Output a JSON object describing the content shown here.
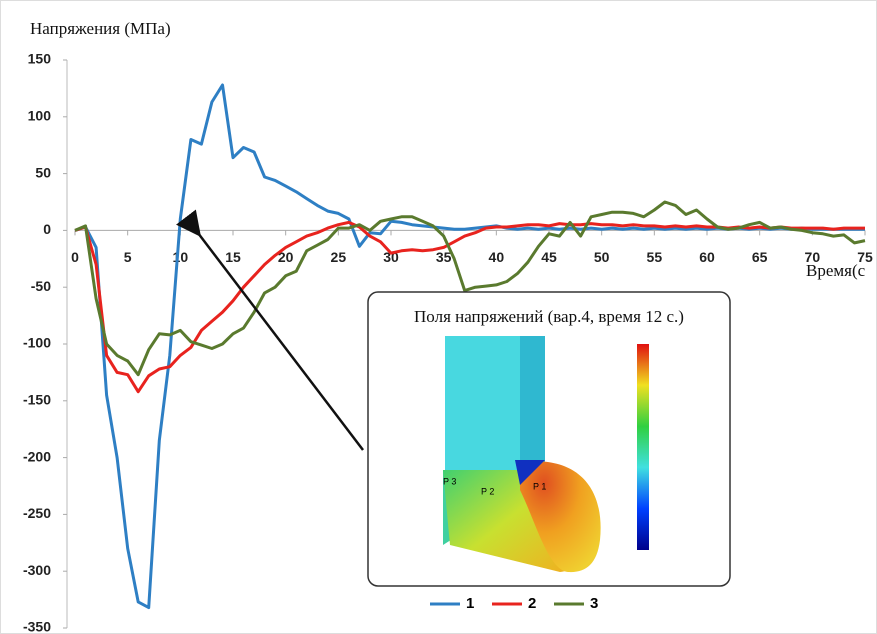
{
  "chart_data": {
    "type": "line",
    "y_label": "Напряжения (МПа)",
    "x_label": "Время(с",
    "x": [
      0,
      1,
      2,
      3,
      4,
      5,
      6,
      7,
      8,
      9,
      10,
      11,
      12,
      13,
      14,
      15,
      16,
      17,
      18,
      19,
      20,
      21,
      22,
      23,
      24,
      25,
      26,
      27,
      28,
      29,
      30,
      31,
      32,
      33,
      34,
      35,
      36,
      37,
      38,
      39,
      40,
      41,
      42,
      43,
      44,
      45,
      46,
      47,
      48,
      49,
      50,
      51,
      52,
      53,
      54,
      55,
      56,
      57,
      58,
      59,
      60,
      61,
      62,
      63,
      64,
      65,
      66,
      67,
      68,
      69,
      70,
      71,
      72,
      73,
      74,
      75
    ],
    "series": [
      {
        "name": "1",
        "color": "#2e7fc4",
        "values": [
          0,
          3,
          -15,
          -145,
          -200,
          -280,
          -327,
          -332,
          -185,
          -110,
          10,
          80,
          76,
          113,
          128,
          64,
          73,
          69,
          47,
          44,
          39,
          34,
          28,
          22,
          17,
          15,
          10,
          -14,
          -2,
          -3,
          8,
          7,
          5,
          4,
          3,
          2,
          1,
          1,
          2,
          3,
          4,
          2,
          1,
          2,
          1,
          2,
          1,
          2,
          1,
          2,
          1,
          2,
          1,
          2,
          1,
          2,
          1,
          2,
          1,
          2,
          1,
          2,
          1,
          2,
          1,
          2,
          1,
          2,
          1,
          2,
          1,
          1,
          1,
          1,
          1,
          1
        ]
      },
      {
        "name": "2",
        "color": "#e8231e",
        "values": [
          0,
          3,
          -30,
          -110,
          -125,
          -127,
          -142,
          -128,
          -122,
          -120,
          -110,
          -103,
          -88,
          -80,
          -72,
          -62,
          -50,
          -40,
          -30,
          -22,
          -15,
          -10,
          -5,
          -2,
          2,
          5,
          7,
          3,
          -5,
          -10,
          -20,
          -18,
          -17,
          -18,
          -17,
          -15,
          -10,
          -5,
          -2,
          2,
          3,
          3,
          4,
          5,
          5,
          4,
          6,
          5,
          5,
          6,
          5,
          5,
          4,
          5,
          4,
          4,
          3,
          4,
          3,
          4,
          3,
          3,
          2,
          3,
          2,
          3,
          2,
          3,
          2,
          2,
          2,
          2,
          1,
          2,
          2,
          2
        ]
      },
      {
        "name": "3",
        "color": "#5a7a2e",
        "values": [
          0,
          4,
          -60,
          -100,
          -110,
          -115,
          -127,
          -105,
          -91,
          -92,
          -88,
          -98,
          -101,
          -104,
          -100,
          -91,
          -86,
          -72,
          -55,
          -50,
          -40,
          -36,
          -18,
          -13,
          -8,
          2,
          2,
          5,
          0,
          8,
          10,
          12,
          12,
          8,
          4,
          -5,
          -25,
          -53,
          -50,
          -49,
          -48,
          -45,
          -38,
          -28,
          -14,
          -3,
          -5,
          7,
          -5,
          12,
          14,
          16,
          16,
          15,
          12,
          18,
          25,
          22,
          14,
          18,
          10,
          3,
          1,
          2,
          5,
          7,
          2,
          3,
          1,
          0,
          -2,
          -3,
          -5,
          -4,
          -11,
          -9
        ]
      }
    ],
    "xlim": [
      0,
      75
    ],
    "xticks": [
      0,
      5,
      10,
      15,
      20,
      25,
      30,
      35,
      40,
      45,
      50,
      55,
      60,
      65,
      70,
      75
    ],
    "ylim": [
      -350,
      150
    ],
    "yticks": [
      -350,
      -300,
      -250,
      -200,
      -150,
      -100,
      -50,
      0,
      50,
      100,
      150
    ],
    "inset": {
      "title": "Поля напряжений (вар.4, время 12 с.)",
      "points": [
        "P 3",
        "P 2",
        "P 1"
      ]
    }
  }
}
